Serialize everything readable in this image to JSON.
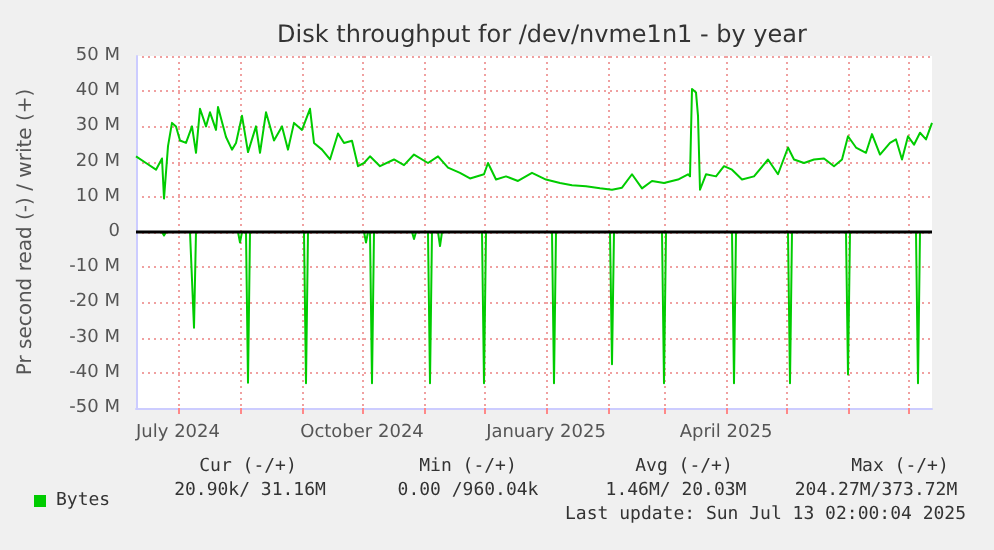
{
  "chart_data": {
    "type": "line",
    "title": "Disk throughput for /dev/nvme1n1 - by year",
    "ylabel": "Pr second read (-) / write (+)",
    "xlim": [
      "2024-06-10",
      "2025-07-13"
    ],
    "xticks": [
      {
        "value": "2024-07-01",
        "label": "July 2024"
      },
      {
        "value": "2024-08-01",
        "label": null
      },
      {
        "value": "2024-09-01",
        "label": null
      },
      {
        "value": "2024-10-01",
        "label": "October 2024"
      },
      {
        "value": "2024-11-01",
        "label": null
      },
      {
        "value": "2024-12-01",
        "label": null
      },
      {
        "value": "2025-01-01",
        "label": "January 2025"
      },
      {
        "value": "2025-02-01",
        "label": null
      },
      {
        "value": "2025-03-01",
        "label": null
      },
      {
        "value": "2025-04-01",
        "label": "April 2025"
      },
      {
        "value": "2025-05-01",
        "label": null
      },
      {
        "value": "2025-06-01",
        "label": null
      },
      {
        "value": "2025-07-01",
        "label": null
      }
    ],
    "ylim": [
      -50,
      50
    ],
    "yticks": [
      {
        "value": -50,
        "label": "-50 M"
      },
      {
        "value": -40,
        "label": "-40 M"
      },
      {
        "value": -30,
        "label": "-30 M"
      },
      {
        "value": -20,
        "label": "-20 M"
      },
      {
        "value": -10,
        "label": "-10 M"
      },
      {
        "value": 0,
        "label": "0"
      },
      {
        "value": 10,
        "label": "10 M"
      },
      {
        "value": 20,
        "label": "20 M"
      },
      {
        "value": 30,
        "label": "30 M"
      },
      {
        "value": 40,
        "label": "40 M"
      },
      {
        "value": 50,
        "label": "50 M"
      }
    ],
    "grid": true,
    "legend": "bottom left",
    "marker": "none",
    "line_style": "solid",
    "ref_lines": [
      {
        "axis": "y",
        "value": 0,
        "color": "#000000"
      }
    ],
    "series": [
      {
        "name": "Bytes",
        "color": "#00cc00",
        "x": [
          "2024-06-10",
          "2024-06-15",
          "2024-06-20",
          "2024-06-23",
          "2024-06-24",
          "2024-06-26",
          "2024-06-28",
          "2024-06-30",
          "2024-07-02",
          "2024-07-05",
          "2024-07-08",
          "2024-07-10",
          "2024-07-12",
          "2024-07-15",
          "2024-07-17",
          "2024-07-20",
          "2024-07-21",
          "2024-07-25",
          "2024-07-28",
          "2024-07-30",
          "2024-08-02",
          "2024-08-05",
          "2024-08-09",
          "2024-08-11",
          "2024-08-14",
          "2024-08-18",
          "2024-08-22",
          "2024-08-25",
          "2024-08-28",
          "2024-09-01",
          "2024-09-05",
          "2024-09-07",
          "2024-09-11",
          "2024-09-15",
          "2024-09-19",
          "2024-09-22",
          "2024-09-26",
          "2024-09-29",
          "2024-10-02",
          "2024-10-05",
          "2024-10-10",
          "2024-10-17",
          "2024-10-22",
          "2024-10-27",
          "2024-11-03",
          "2024-11-08",
          "2024-11-13",
          "2024-11-19",
          "2024-11-24",
          "2024-12-01",
          "2024-12-03",
          "2024-12-07",
          "2024-12-12",
          "2024-12-18",
          "2024-12-25",
          "2025-01-01",
          "2025-01-08",
          "2025-01-14",
          "2025-01-21",
          "2025-01-28",
          "2025-02-03",
          "2025-02-08",
          "2025-02-13",
          "2025-02-18",
          "2025-02-23",
          "2025-03-01",
          "2025-03-08",
          "2025-03-13",
          "2025-03-14",
          "2025-03-15",
          "2025-03-17",
          "2025-03-18",
          "2025-03-19",
          "2025-03-22",
          "2025-03-27",
          "2025-03-31",
          "2025-04-04",
          "2025-04-09",
          "2025-04-15",
          "2025-04-22",
          "2025-04-27",
          "2025-05-02",
          "2025-05-05",
          "2025-05-10",
          "2025-05-15",
          "2025-05-20",
          "2025-05-25",
          "2025-05-29",
          "2025-06-01",
          "2025-06-05",
          "2025-06-10",
          "2025-06-13",
          "2025-06-17",
          "2025-06-22",
          "2025-06-25",
          "2025-06-28",
          "2025-07-01",
          "2025-07-04",
          "2025-07-07",
          "2025-07-10",
          "2025-07-13"
        ],
        "values": [
          21.5,
          19.6,
          17.7,
          20.9,
          9.5,
          24.4,
          31,
          30,
          26,
          25.3,
          30,
          22.5,
          35,
          30,
          34,
          29,
          35.5,
          27,
          23.4,
          25.3,
          33,
          22.7,
          30,
          22.5,
          34,
          26,
          30,
          23.4,
          31,
          29,
          35,
          25.3,
          23.4,
          20.6,
          28,
          25.3,
          25.9,
          18.7,
          19.6,
          21.5,
          18.7,
          20.6,
          19,
          22,
          19.6,
          21.5,
          18.3,
          16.8,
          15.2,
          16.4,
          19.6,
          14.9,
          15.8,
          14.5,
          16.8,
          14.9,
          13.9,
          13.3,
          13,
          12.4,
          12,
          12.6,
          16.4,
          12.4,
          14.5,
          13.9,
          14.9,
          16.4,
          15.8,
          40.6,
          39.6,
          33,
          12,
          16.4,
          15.8,
          18.7,
          17.7,
          14.9,
          15.8,
          20.6,
          16.4,
          24,
          20.6,
          19.6,
          20.6,
          20.9,
          18.7,
          20.6,
          27.2,
          24,
          22.5,
          27.8,
          22,
          25.3,
          26.3,
          20.6,
          27.2,
          24.8,
          28.2,
          26.3,
          31
        ]
      },
      {
        "color": "#00cc00",
        "x": [
          "2024-06-10",
          "2024-06-23",
          "2024-06-24",
          "2024-06-25",
          "2024-07-07",
          "2024-07-09",
          "2024-07-10",
          "2024-07-31",
          "2024-08-01",
          "2024-08-02",
          "2024-08-04",
          "2024-08-05",
          "2024-08-06",
          "2024-09-02",
          "2024-09-03",
          "2024-09-04",
          "2024-10-02",
          "2024-10-03",
          "2024-10-04",
          "2024-10-05",
          "2024-10-06",
          "2024-10-07",
          "2024-10-26",
          "2024-10-27",
          "2024-10-28",
          "2024-11-03",
          "2024-11-04",
          "2024-11-05",
          "2024-11-08",
          "2024-11-09",
          "2024-11-10",
          "2024-11-30",
          "2024-12-01",
          "2024-12-02",
          "2025-01-04",
          "2025-01-05",
          "2025-01-06",
          "2025-02-02",
          "2025-02-03",
          "2025-02-04",
          "2025-02-28",
          "2025-03-01",
          "2025-03-02",
          "2025-04-04",
          "2025-04-05",
          "2025-04-06",
          "2025-05-02",
          "2025-05-03",
          "2025-05-04",
          "2025-05-31",
          "2025-06-01",
          "2025-06-02",
          "2025-07-05",
          "2025-07-06",
          "2025-07-07",
          "2025-07-13"
        ],
        "values": [
          0,
          0,
          -1,
          0,
          0,
          -27.2,
          0,
          0,
          -3,
          0,
          0,
          -42.8,
          0,
          0,
          -43,
          0,
          0,
          -3,
          0,
          0,
          -43,
          0,
          0,
          -2,
          0,
          0,
          -43,
          0,
          0,
          -4,
          0,
          0,
          -43,
          0,
          0,
          -43,
          0,
          0,
          -37.6,
          0,
          0,
          -43,
          0,
          0,
          -43,
          0,
          0,
          -43,
          0,
          0,
          -40.5,
          0,
          0,
          -43,
          0,
          0
        ]
      }
    ],
    "annotations": [
      "Cur (-/+)",
      "Min (-/+)",
      "Avg (-/+)",
      "Max (-/+)",
      "20.90k/ 31.16M",
      "0.00 /960.04k",
      "1.46M/ 20.03M",
      "204.27M/373.72M",
      "Last update: Sun Jul 13 02:00:04 2025"
    ]
  }
}
